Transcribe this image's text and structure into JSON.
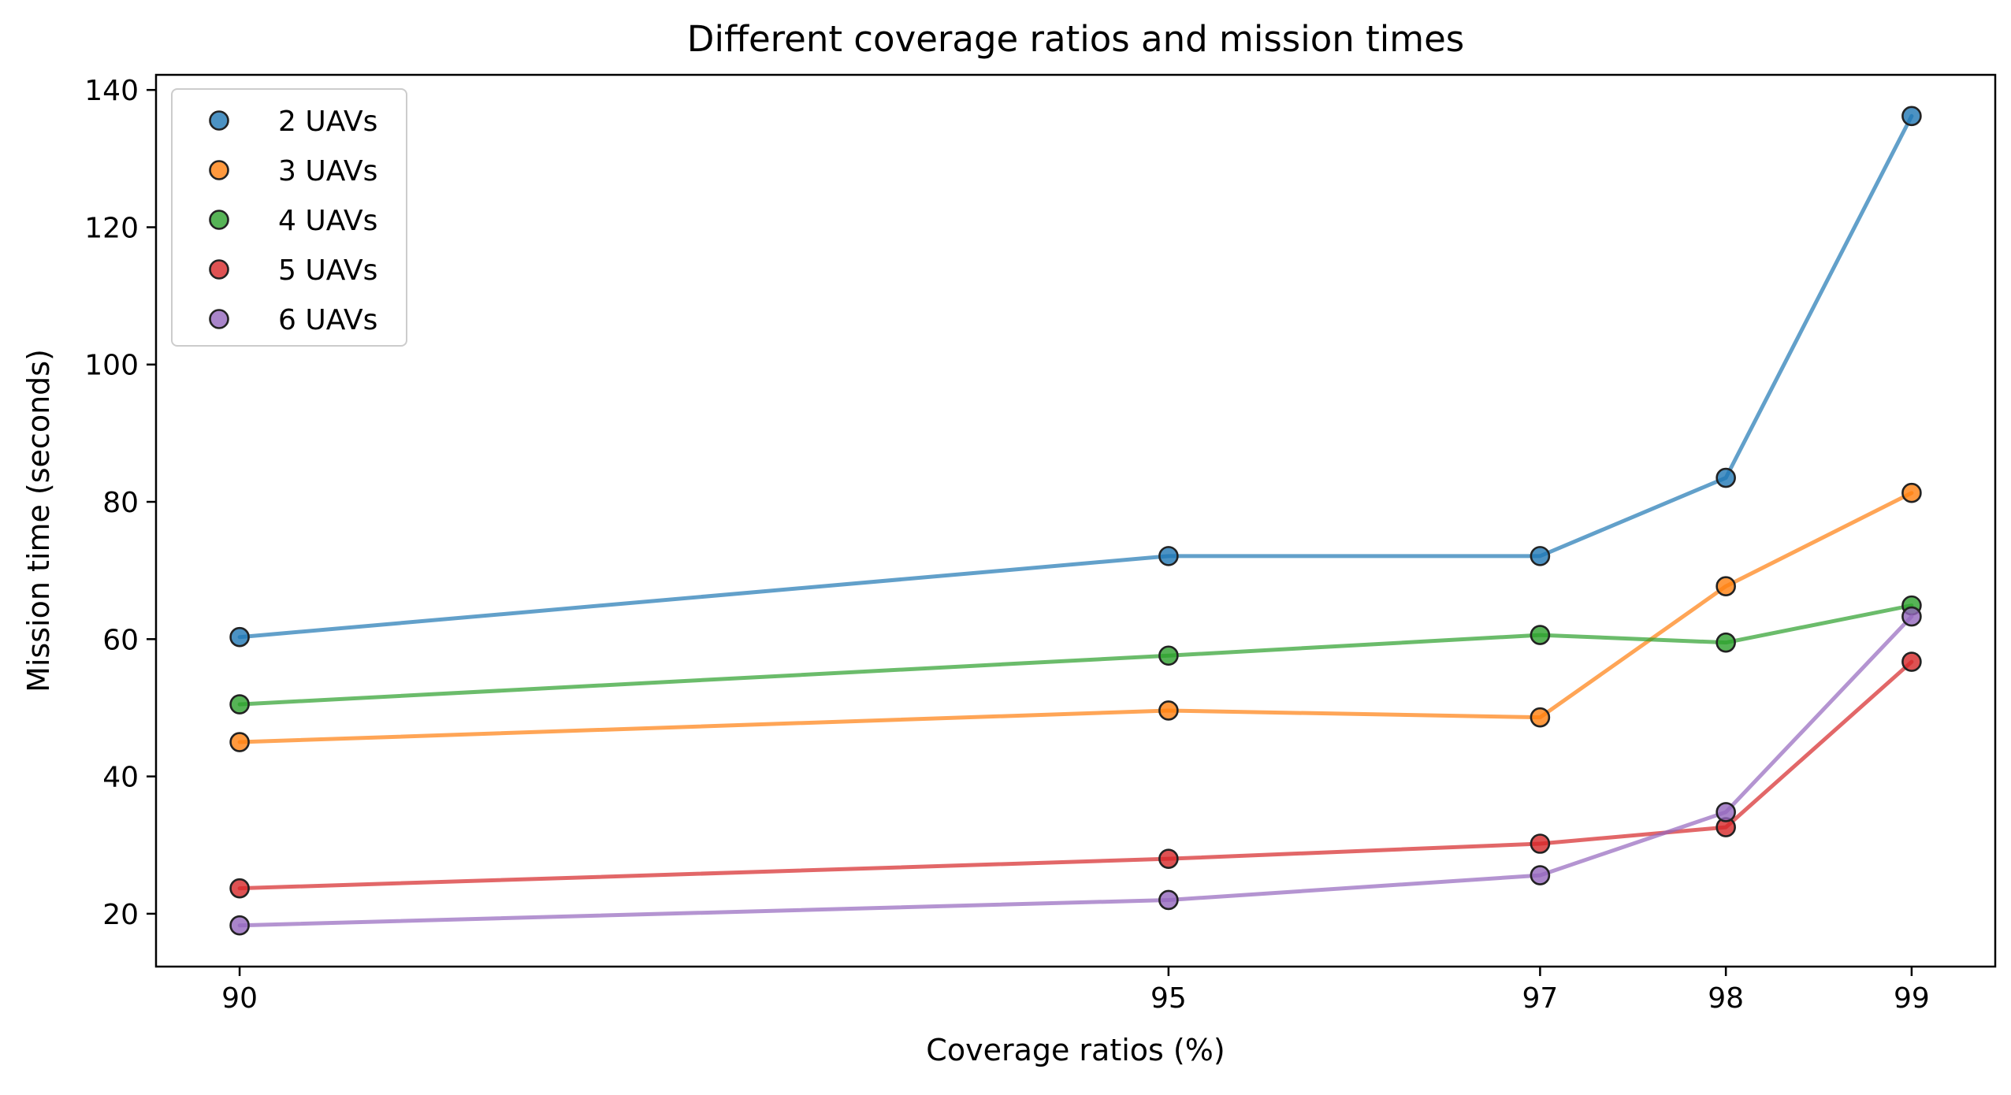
{
  "chart_data": {
    "type": "line",
    "title": "Different coverage ratios and mission times",
    "xlabel": "Coverage ratios (%)",
    "ylabel": "Mission time (seconds)",
    "x": [
      90,
      95,
      97,
      98,
      99
    ],
    "x_tick_labels": [
      "90",
      "95",
      "97",
      "98",
      "99"
    ],
    "xlim": [
      89.55,
      99.45
    ],
    "ylim": [
      12.3,
      142.2
    ],
    "y_ticks": [
      20,
      40,
      60,
      80,
      100,
      120,
      140
    ],
    "grid": false,
    "legend_position": "top-left",
    "markers": "circle with dark edge",
    "series": [
      {
        "name": "2 UAVs",
        "color": "#1f77b4",
        "values": [
          60.3,
          72.1,
          72.1,
          83.5,
          136.2
        ]
      },
      {
        "name": "3 UAVs",
        "color": "#ff7f0e",
        "values": [
          45.0,
          49.6,
          48.6,
          67.7,
          81.3
        ]
      },
      {
        "name": "4 UAVs",
        "color": "#2ca02c",
        "values": [
          50.5,
          57.6,
          60.6,
          59.5,
          64.9
        ]
      },
      {
        "name": "5 UAVs",
        "color": "#d62728",
        "values": [
          23.7,
          28.0,
          30.2,
          32.6,
          56.7
        ]
      },
      {
        "name": "6 UAVs",
        "color": "#9467bd",
        "values": [
          18.3,
          22.0,
          25.6,
          34.8,
          63.3
        ]
      }
    ]
  }
}
